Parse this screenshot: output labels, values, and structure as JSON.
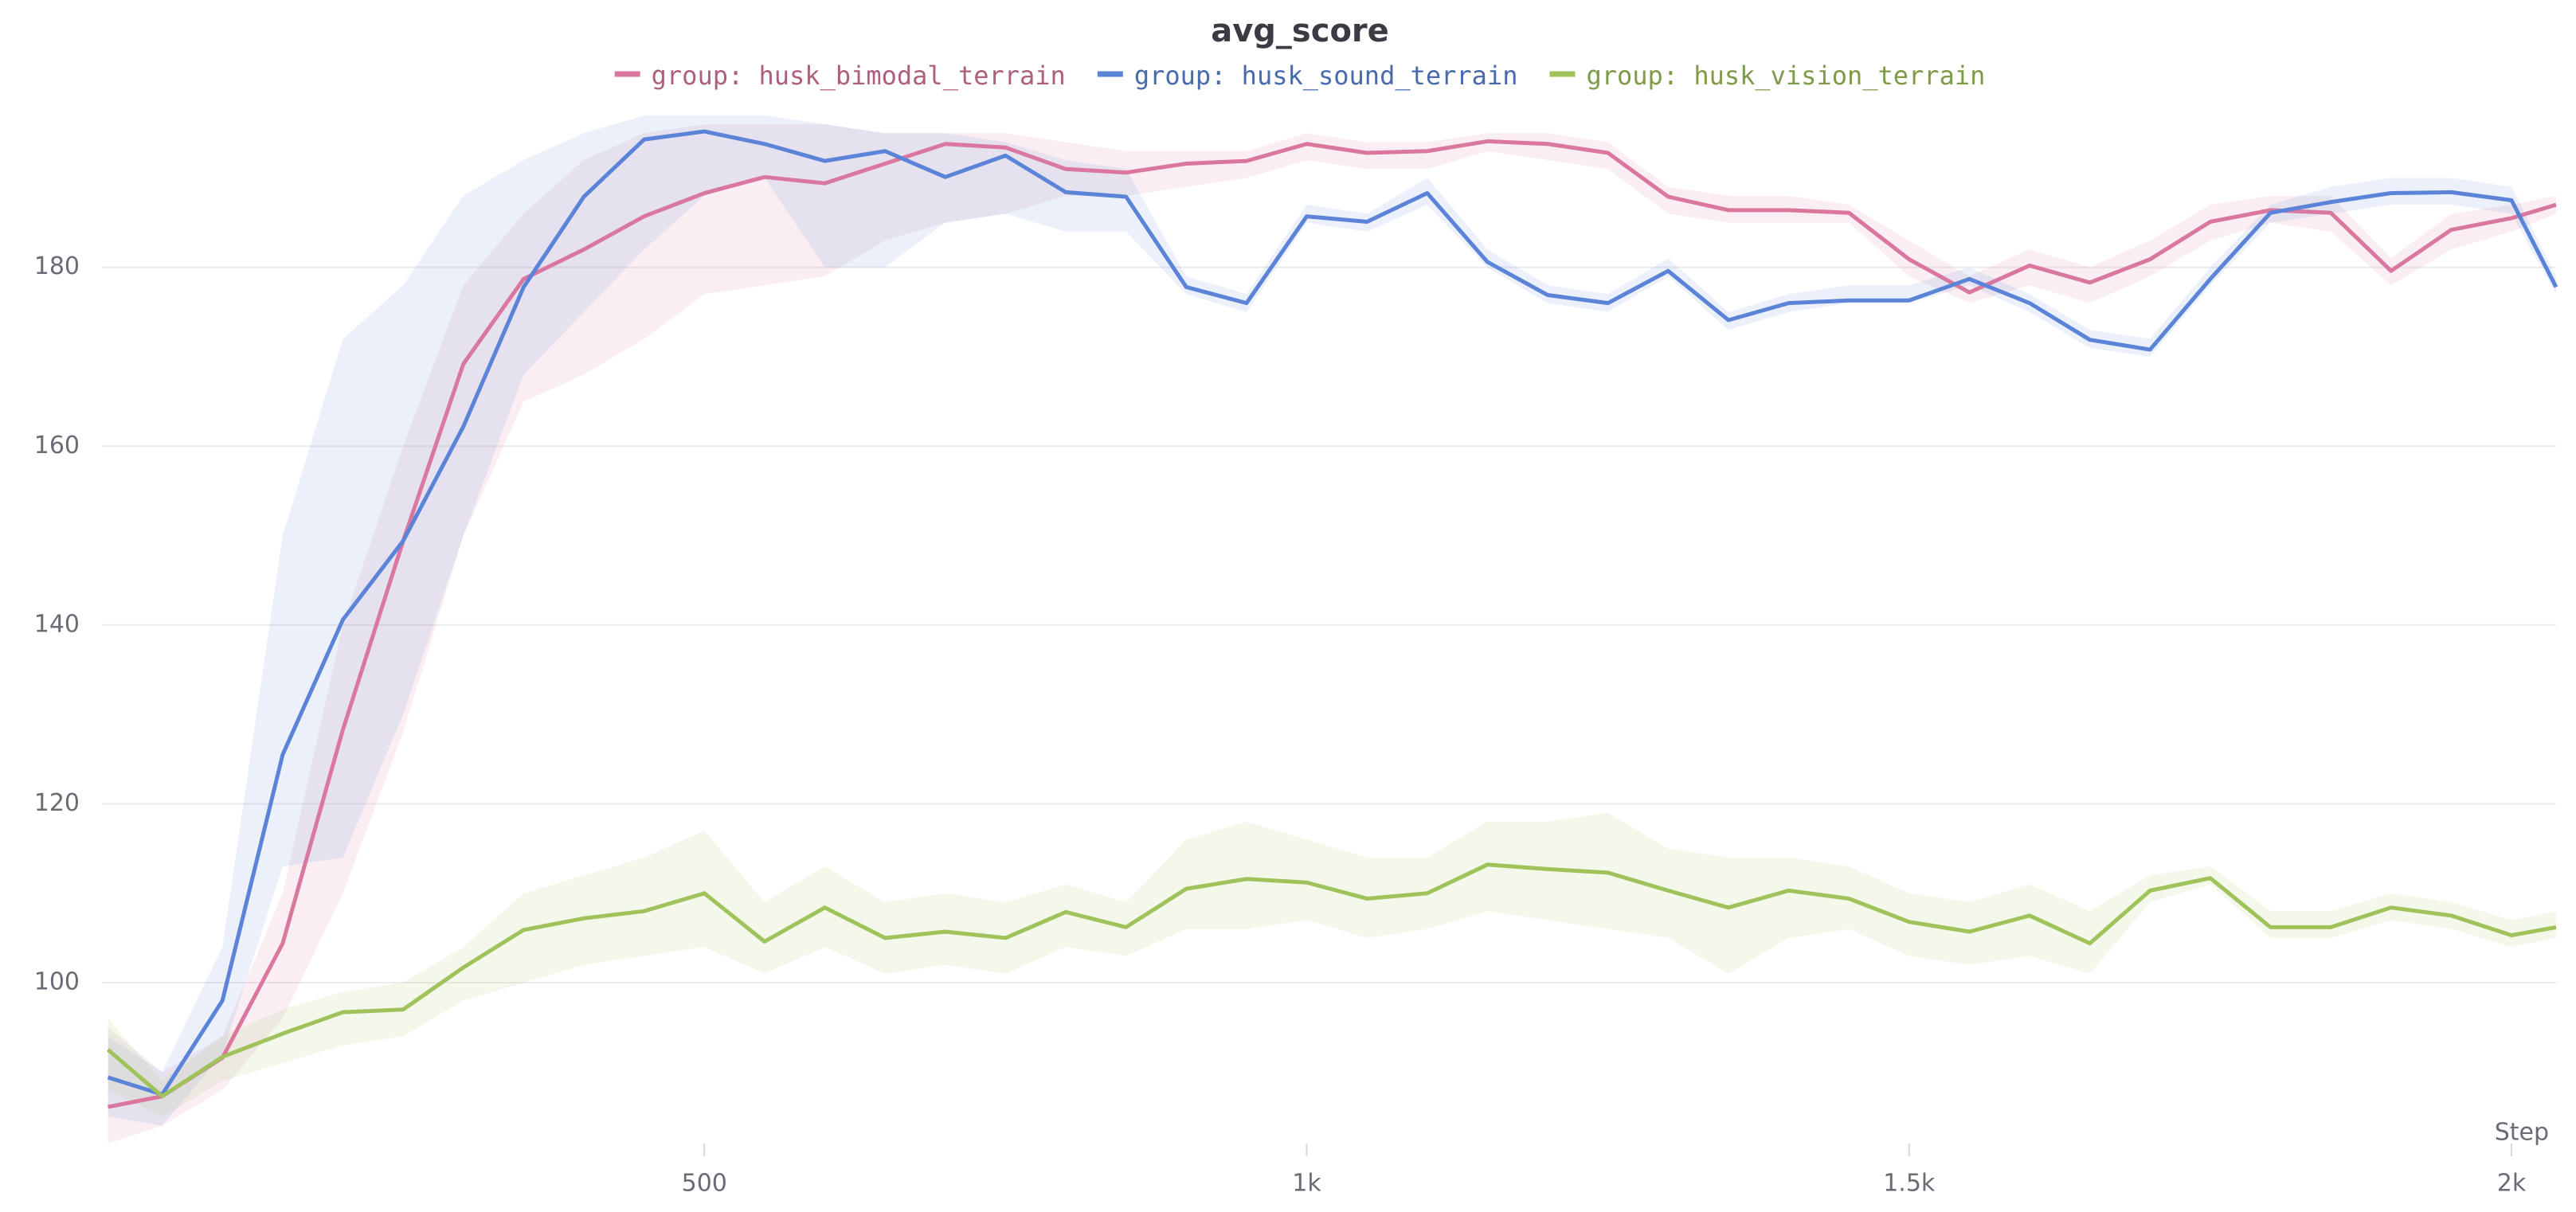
{
  "chart_data": {
    "type": "line",
    "title": "avg_score",
    "x_label": "Step",
    "xlim": [
      0,
      2037
    ],
    "ylim": [
      81.3,
      198.5
    ],
    "xticks": [
      500,
      {
        "value": 1000,
        "label": "1k"
      },
      {
        "value": 1500,
        "label": "1.5k"
      },
      {
        "value": 2000,
        "label": "2k"
      }
    ],
    "yticks": [
      100,
      120,
      140,
      160,
      180
    ],
    "grid": true,
    "legend": "top",
    "x": [
      5,
      50,
      100,
      150,
      200,
      250,
      300,
      350,
      400,
      450,
      500,
      550,
      600,
      650,
      700,
      750,
      800,
      850,
      900,
      950,
      1000,
      1050,
      1100,
      1150,
      1200,
      1250,
      1300,
      1350,
      1400,
      1450,
      1500,
      1550,
      1600,
      1650,
      1700,
      1750,
      1800,
      1850,
      1900,
      1950,
      2000,
      2037
    ],
    "series": [
      {
        "name": "group: husk_bimodal_terrain",
        "color": "#d9779f",
        "values": [
          86.1,
          87.3,
          91.6,
          104.4,
          128.3,
          149.4,
          169.2,
          178.7,
          182,
          185.7,
          188.3,
          190.1,
          189.4,
          191.6,
          193.8,
          193.4,
          191,
          190.6,
          191.6,
          191.9,
          193.8,
          192.8,
          193,
          194.1,
          193.8,
          192.8,
          187.9,
          186.4,
          186.4,
          186.1,
          180.9,
          177.2,
          180.2,
          178.3,
          180.9,
          185.1,
          186.4,
          186.1,
          179.6,
          184.2,
          185.5,
          187
        ],
        "lower": [
          82,
          84,
          88,
          96,
          110,
          128,
          150,
          165,
          168,
          172,
          177,
          178,
          179,
          183,
          185,
          186,
          188,
          188,
          189,
          190,
          192,
          191,
          191,
          193,
          192,
          191,
          186,
          185,
          185,
          185,
          179,
          176,
          178,
          176,
          179,
          183,
          185,
          184,
          178,
          182,
          184,
          186
        ],
        "upper": [
          95,
          90,
          94,
          110,
          140,
          160,
          178,
          186,
          192,
          195,
          196,
          196,
          196,
          195,
          195,
          195,
          194,
          193,
          193,
          193,
          195,
          194,
          194,
          195,
          195,
          194,
          189,
          188,
          188,
          187,
          183,
          179,
          182,
          180,
          183,
          187,
          188,
          188,
          181,
          186,
          187,
          188
        ]
      },
      {
        "name": "group: husk_sound_terrain",
        "color": "#5b84d8",
        "values": [
          89.4,
          87.5,
          98,
          125.5,
          140.6,
          149.4,
          162.2,
          177.8,
          187.9,
          194.3,
          195.2,
          193.8,
          191.9,
          193,
          190.1,
          192.5,
          188.4,
          187.9,
          177.8,
          176,
          185.7,
          185.1,
          188.3,
          180.6,
          176.9,
          176,
          179.6,
          174.1,
          176,
          176.3,
          176.3,
          178.7,
          176,
          171.9,
          170.8,
          178.7,
          186.1,
          187.3,
          188.3,
          188.4,
          187.5,
          177.8
        ],
        "lower": [
          85,
          84,
          92,
          113,
          114,
          130,
          150,
          168,
          175,
          182,
          188,
          190,
          180,
          180,
          185,
          186,
          184,
          184,
          177,
          175,
          185,
          184,
          187,
          180,
          176,
          175,
          179,
          173,
          175,
          176,
          176,
          178,
          175,
          171,
          170,
          178,
          185,
          186,
          187,
          187,
          186,
          177
        ],
        "upper": [
          94,
          90,
          104,
          150,
          172,
          178,
          188,
          192,
          195,
          197,
          197,
          197,
          196,
          195,
          195,
          194,
          192,
          191,
          179,
          177,
          187,
          186,
          190,
          182,
          178,
          177,
          181,
          175,
          177,
          178,
          178,
          180,
          177,
          173,
          172,
          180,
          187,
          189,
          190,
          190,
          189,
          179
        ]
      },
      {
        "name": "group: husk_vision_terrain",
        "color": "#9fc25a",
        "values": [
          92.5,
          87.3,
          91.7,
          94.3,
          96.7,
          97,
          101.7,
          105.9,
          107.2,
          108,
          110,
          104.6,
          108.4,
          105,
          105.7,
          105,
          107.9,
          106.2,
          110.5,
          111.6,
          111.2,
          109.4,
          110,
          113.2,
          112.7,
          112.3,
          110.3,
          108.4,
          110.3,
          109.4,
          106.8,
          105.7,
          107.5,
          104.4,
          110.3,
          111.7,
          106.2,
          106.2,
          108.4,
          107.5,
          105.3,
          106.2
        ],
        "lower": [
          88,
          85,
          89,
          91,
          93,
          94,
          98,
          100,
          102,
          103,
          104,
          101,
          104,
          101,
          102,
          101,
          104,
          103,
          106,
          106,
          107,
          105,
          106,
          108,
          107,
          106,
          105,
          101,
          105,
          106,
          103,
          102,
          103,
          101,
          109,
          111,
          105,
          105,
          107,
          106,
          104,
          105
        ],
        "upper": [
          96,
          89,
          94,
          97,
          99,
          100,
          104,
          110,
          112,
          114,
          117,
          109,
          113,
          109,
          110,
          109,
          111,
          109,
          116,
          118,
          116,
          114,
          114,
          118,
          118,
          119,
          115,
          114,
          114,
          113,
          110,
          109,
          111,
          108,
          112,
          113,
          108,
          108,
          110,
          109,
          107,
          108
        ]
      }
    ]
  }
}
